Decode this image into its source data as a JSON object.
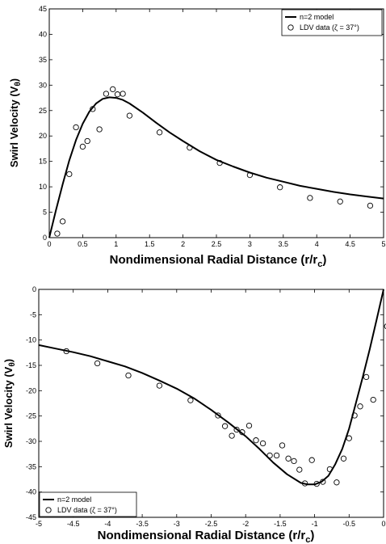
{
  "chart_data": [
    {
      "type": "scatter",
      "xlabel": "Nondimensional Radial Distance (r/r",
      "xlabel_sub": "c",
      "xlabel_end": ")",
      "ylabel": "Swirl Velocity (V",
      "ylabel_sub": "θ",
      "ylabel_end": ")",
      "xlim": [
        0,
        5
      ],
      "ylim": [
        0,
        45
      ],
      "xticks": [
        0,
        0.5,
        1,
        1.5,
        2,
        2.5,
        3,
        3.5,
        4,
        4.5,
        5
      ],
      "yticks": [
        0,
        5,
        10,
        15,
        20,
        25,
        30,
        35,
        40,
        45
      ],
      "legend_position": "top-right",
      "grid": false,
      "series": [
        {
          "name": "n=2 model",
          "style": "line",
          "x": [
            0,
            0.1,
            0.2,
            0.3,
            0.4,
            0.5,
            0.6,
            0.7,
            0.8,
            0.9,
            1.0,
            1.1,
            1.2,
            1.4,
            1.6,
            1.8,
            2.0,
            2.25,
            2.5,
            2.75,
            3.0,
            3.25,
            3.5,
            3.75,
            4.0,
            4.25,
            4.5,
            4.75,
            5.0
          ],
          "y": [
            0,
            5.4,
            10.5,
            15.2,
            19.2,
            22.4,
            24.8,
            26.4,
            27.3,
            27.6,
            27.5,
            27.1,
            26.4,
            24.6,
            22.6,
            20.7,
            19.0,
            17.0,
            15.3,
            14.0,
            12.8,
            11.8,
            11.0,
            10.2,
            9.6,
            9.0,
            8.5,
            8.1,
            7.7
          ]
        },
        {
          "name": "LDV data (ζ = 37°)",
          "style": "marker",
          "x": [
            0.12,
            0.2,
            0.3,
            0.4,
            0.5,
            0.57,
            0.65,
            0.75,
            0.85,
            0.95,
            1.02,
            1.1,
            1.2,
            1.65,
            2.1,
            2.55,
            3.0,
            3.45,
            3.9,
            4.35,
            4.8
          ],
          "y": [
            0.8,
            3.2,
            12.5,
            21.7,
            17.9,
            19.0,
            25.3,
            21.3,
            28.3,
            29.2,
            28.2,
            28.3,
            24.0,
            20.7,
            17.7,
            14.7,
            12.3,
            9.9,
            7.8,
            7.1,
            6.3
          ]
        }
      ]
    },
    {
      "type": "scatter",
      "xlabel": "Nondimensional Radial Distance (r/r",
      "xlabel_sub": "c",
      "xlabel_end": ")",
      "ylabel": "Swirl Velocity (V",
      "ylabel_sub": "θ",
      "ylabel_end": ")",
      "xlim": [
        -5,
        0
      ],
      "ylim": [
        -45,
        0
      ],
      "xticks": [
        -5,
        -4.5,
        -4,
        -3.5,
        -3,
        -2.5,
        -2,
        -1.5,
        -1,
        -0.5,
        0
      ],
      "yticks": [
        -45,
        -40,
        -35,
        -30,
        -25,
        -20,
        -15,
        -10,
        -5,
        0
      ],
      "legend_position": "bottom-left",
      "grid": false,
      "series": [
        {
          "name": "n=2 model",
          "style": "line",
          "x": [
            -5.0,
            -4.75,
            -4.5,
            -4.25,
            -4.0,
            -3.75,
            -3.5,
            -3.25,
            -3.0,
            -2.75,
            -2.5,
            -2.25,
            -2.0,
            -1.8,
            -1.6,
            -1.4,
            -1.2,
            -1.1,
            -1.0,
            -0.9,
            -0.8,
            -0.7,
            -0.6,
            -0.5,
            -0.4,
            -0.3,
            -0.2,
            -0.1,
            0
          ],
          "y": [
            -11.0,
            -11.7,
            -12.4,
            -13.2,
            -14.2,
            -15.2,
            -16.5,
            -18.0,
            -19.6,
            -21.5,
            -23.8,
            -26.3,
            -29.0,
            -31.5,
            -34.2,
            -36.5,
            -38.2,
            -38.5,
            -38.5,
            -38.0,
            -36.8,
            -34.5,
            -31.5,
            -27.5,
            -22.4,
            -17.2,
            -11.8,
            -5.9,
            0
          ]
        },
        {
          "name": "LDV data (ζ = 37°)",
          "style": "marker",
          "x": [
            -4.6,
            -4.15,
            -3.7,
            -3.25,
            -2.8,
            -2.4,
            -2.3,
            -2.2,
            -2.13,
            -2.05,
            -1.95,
            -1.85,
            -1.75,
            -1.65,
            -1.55,
            -1.47,
            -1.38,
            -1.3,
            -1.22,
            -1.14,
            -1.04,
            -0.97,
            -0.88,
            -0.78,
            -0.68,
            -0.58,
            -0.5,
            -0.42,
            -0.34,
            -0.25,
            -0.15,
            0.05
          ],
          "y": [
            -12.2,
            -14.6,
            -17.0,
            -19.0,
            -21.9,
            -24.9,
            -27.0,
            -28.9,
            -27.7,
            -28.2,
            -26.9,
            -29.8,
            -30.4,
            -32.8,
            -32.8,
            -30.8,
            -33.4,
            -33.9,
            -35.6,
            -38.3,
            -33.7,
            -38.4,
            -38.0,
            -35.5,
            -38.1,
            -33.4,
            -29.4,
            -24.9,
            -23.1,
            -17.3,
            -21.8,
            -7.3
          ]
        }
      ]
    }
  ]
}
